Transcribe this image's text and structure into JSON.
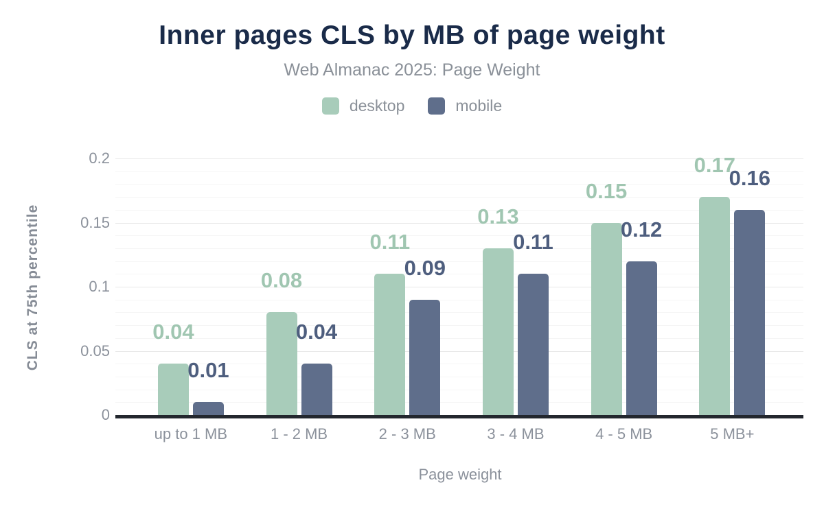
{
  "chart_data": {
    "type": "bar",
    "title": "Inner pages CLS by MB of page weight",
    "subtitle": "Web Almanac 2025: Page Weight",
    "xlabel": "Page weight",
    "ylabel": "CLS at 75th percentile",
    "categories": [
      "up to 1 MB",
      "1 - 2 MB",
      "2 - 3 MB",
      "3 - 4 MB",
      "4 - 5 MB",
      "5 MB+"
    ],
    "series": [
      {
        "name": "desktop",
        "values": [
          0.04,
          0.08,
          0.11,
          0.13,
          0.15,
          0.17
        ],
        "labels": [
          "0.04",
          "0.08",
          "0.11",
          "0.13",
          "0.15",
          "0.17"
        ],
        "bar_color": "#a8ccba",
        "label_color": "#a0c6b1"
      },
      {
        "name": "mobile",
        "values": [
          0.01,
          0.04,
          0.09,
          0.11,
          0.12,
          0.16
        ],
        "labels": [
          "0.01",
          "0.04",
          "0.09",
          "0.11",
          "0.12",
          "0.16"
        ],
        "bar_color": "#5f6e8b",
        "label_color": "#4e5e7e"
      }
    ],
    "ylim": [
      0,
      0.2
    ],
    "yticks": [
      {
        "value": 0,
        "label": "0"
      },
      {
        "value": 0.05,
        "label": "0.05"
      },
      {
        "value": 0.1,
        "label": "0.1"
      },
      {
        "value": 0.15,
        "label": "0.15"
      },
      {
        "value": 0.2,
        "label": "0.2"
      }
    ],
    "y_minor_step": 0.01,
    "grid": "major+minor",
    "legend_position": "top"
  },
  "colors": {
    "title_text": "#1a2b49",
    "muted_text": "#8a9098",
    "grid_major": "#e7e7e7",
    "grid_minor": "#f5f5f5",
    "axis_line": "#23272e",
    "background": "#ffffff"
  }
}
